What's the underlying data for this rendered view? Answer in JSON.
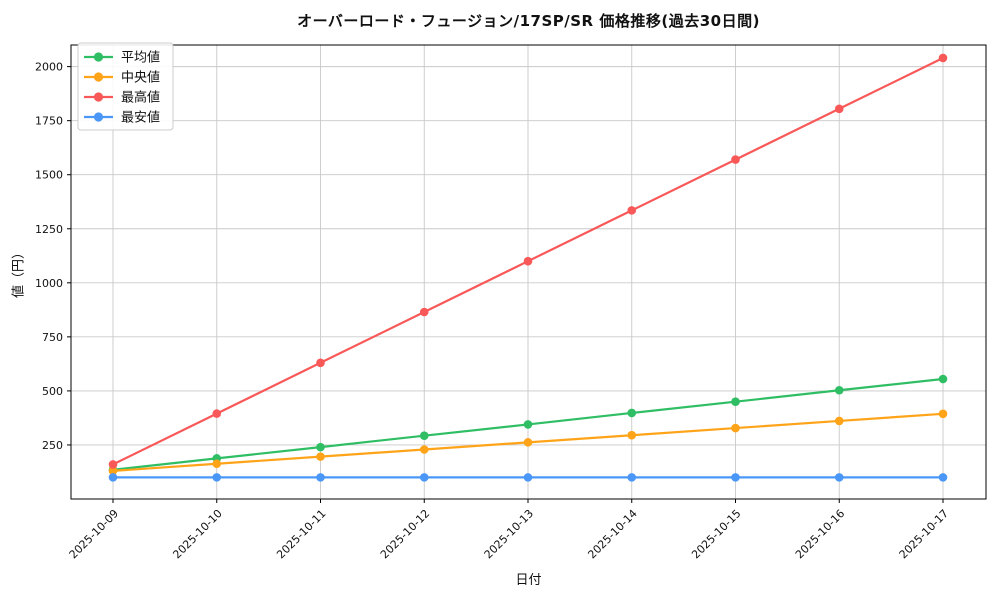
{
  "figure": {
    "title": "オーバーロード・フュージョン/17SP/SR 価格推移(過去30日間)",
    "xlabel": "日付",
    "ylabel": "値（円）"
  },
  "chart_data": {
    "type": "line",
    "title": "オーバーロード・フュージョン/17SP/SR 価格推移(過去30日間)",
    "xlabel": "日付",
    "ylabel": "値（円）",
    "categories": [
      "2025-10-09",
      "2025-10-10",
      "2025-10-11",
      "2025-10-12",
      "2025-10-13",
      "2025-10-14",
      "2025-10-15",
      "2025-10-16",
      "2025-10-17"
    ],
    "series": [
      {
        "name": "平均値",
        "color": "#2FBE64",
        "values": [
          135,
          188,
          240,
          293,
          345,
          398,
          450,
          503,
          555
        ]
      },
      {
        "name": "中央値",
        "color": "#FFA318",
        "values": [
          130,
          163,
          196,
          229,
          262,
          295,
          328,
          361,
          394
        ]
      },
      {
        "name": "最高値",
        "color": "#F95858",
        "values": [
          160,
          395,
          630,
          865,
          1100,
          1335,
          1570,
          1805,
          2040
        ]
      },
      {
        "name": "最安値",
        "color": "#4A97F7",
        "values": [
          100,
          100,
          100,
          100,
          100,
          100,
          100,
          100,
          100
        ]
      }
    ],
    "yticks": [
      250,
      500,
      750,
      1000,
      1250,
      1500,
      1750,
      2000
    ],
    "ylim": [
      0,
      2100
    ],
    "grid": true,
    "grid_color": "#c9c9c9",
    "spine_color": "#000000",
    "legend_position": "upper-left",
    "legend_border_color": "#cccccc",
    "background": "#ffffff",
    "x_tick_rotation": -45
  }
}
